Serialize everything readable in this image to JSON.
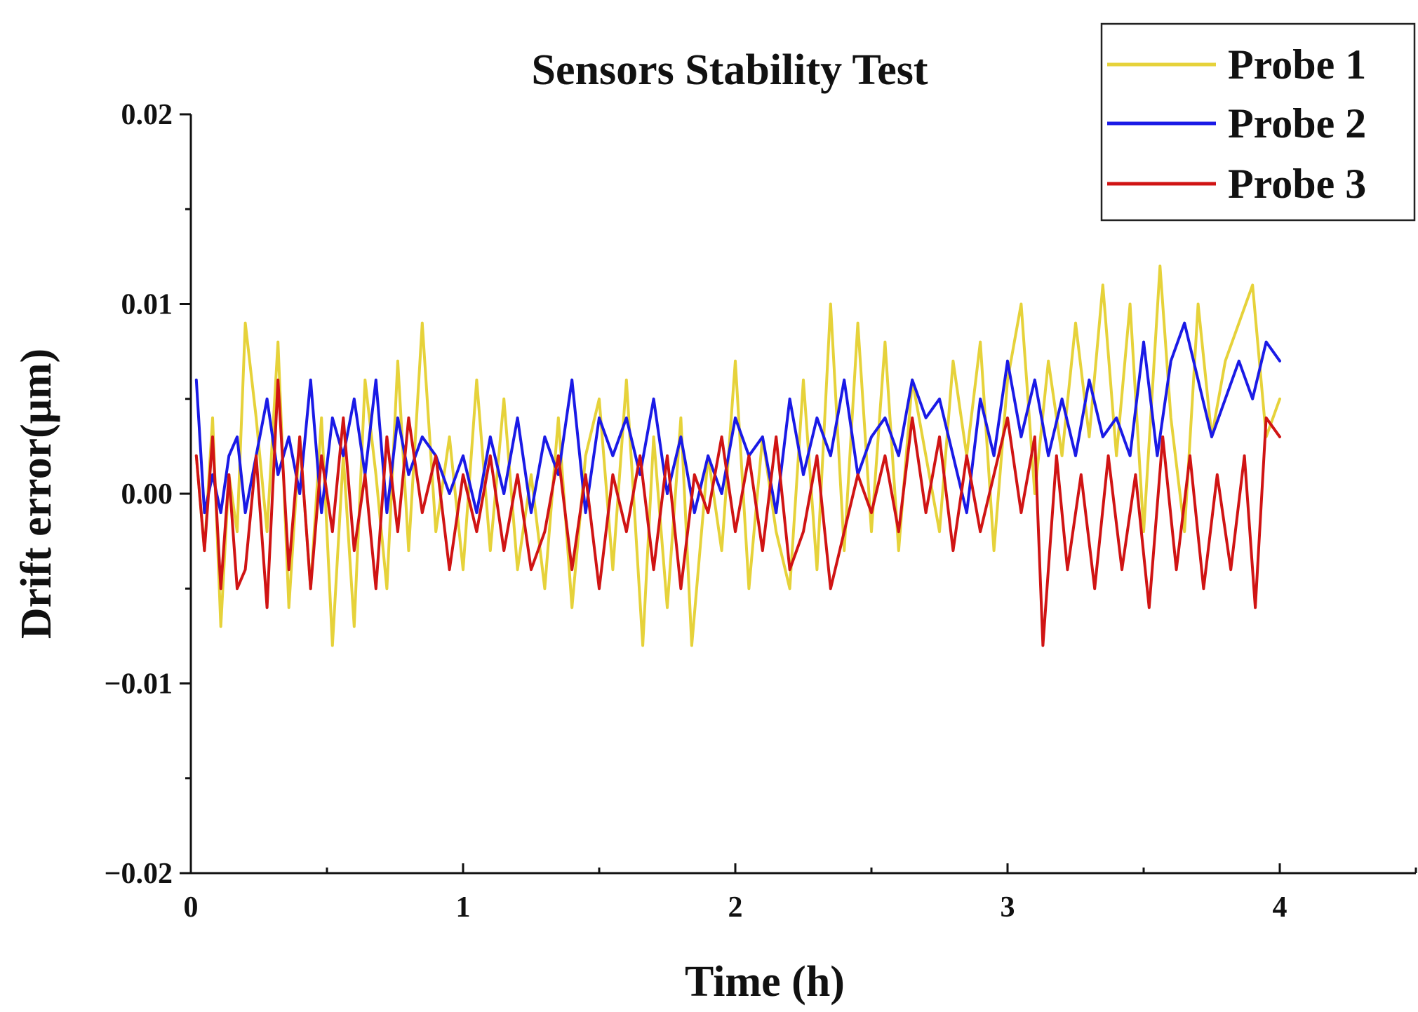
{
  "chart_data": {
    "type": "line",
    "title": "Sensors Stability Test",
    "xlabel": "Time (h)",
    "ylabel": "Drift error(μm)",
    "xlim": [
      0,
      4.5
    ],
    "ylim": [
      -0.02,
      0.02
    ],
    "x_ticks": [
      0,
      1,
      2,
      3,
      4
    ],
    "x_tick_labels": [
      "0",
      "1",
      "2",
      "3",
      "4"
    ],
    "x_minor_ticks": [
      0.5,
      1.5,
      2.5,
      3.5,
      4.5
    ],
    "y_ticks": [
      -0.02,
      -0.01,
      0.0,
      0.01,
      0.02
    ],
    "y_tick_labels": [
      "−0.02",
      "−0.01",
      "0.00",
      "0.01",
      "0.02"
    ],
    "y_minor_ticks": [
      -0.015,
      -0.005,
      0.005,
      0.015
    ],
    "grid": false,
    "legend": "top-right",
    "series": [
      {
        "name": "Probe 1",
        "color": "#e6d23a",
        "x": [
          0.02,
          0.05,
          0.08,
          0.11,
          0.14,
          0.17,
          0.2,
          0.24,
          0.28,
          0.32,
          0.36,
          0.4,
          0.44,
          0.48,
          0.52,
          0.56,
          0.6,
          0.64,
          0.68,
          0.72,
          0.76,
          0.8,
          0.85,
          0.9,
          0.95,
          1.0,
          1.05,
          1.1,
          1.15,
          1.2,
          1.25,
          1.3,
          1.35,
          1.4,
          1.45,
          1.5,
          1.55,
          1.6,
          1.66,
          1.7,
          1.75,
          1.8,
          1.84,
          1.9,
          1.95,
          2.0,
          2.05,
          2.1,
          2.15,
          2.2,
          2.25,
          2.3,
          2.35,
          2.4,
          2.45,
          2.5,
          2.55,
          2.6,
          2.65,
          2.7,
          2.75,
          2.8,
          2.85,
          2.9,
          2.95,
          3.0,
          3.05,
          3.1,
          3.15,
          3.2,
          3.25,
          3.3,
          3.35,
          3.4,
          3.45,
          3.5,
          3.56,
          3.6,
          3.65,
          3.7,
          3.75,
          3.8,
          3.85,
          3.9,
          3.95,
          4.0
        ],
        "y": [
          0.002,
          -0.003,
          0.004,
          -0.007,
          0.001,
          -0.002,
          0.009,
          0.004,
          -0.002,
          0.008,
          -0.006,
          0.003,
          -0.005,
          0.004,
          -0.008,
          0.002,
          -0.007,
          0.006,
          0.001,
          -0.005,
          0.007,
          -0.003,
          0.009,
          -0.002,
          0.003,
          -0.004,
          0.006,
          -0.003,
          0.005,
          -0.004,
          0.001,
          -0.005,
          0.004,
          -0.006,
          0.002,
          0.005,
          -0.004,
          0.006,
          -0.008,
          0.003,
          -0.006,
          0.004,
          -0.008,
          0.002,
          -0.003,
          0.007,
          -0.005,
          0.003,
          -0.002,
          -0.005,
          0.006,
          -0.004,
          0.01,
          -0.003,
          0.009,
          -0.002,
          0.008,
          -0.003,
          0.006,
          0.002,
          -0.002,
          0.007,
          0.002,
          0.008,
          -0.003,
          0.006,
          0.01,
          0.0,
          0.007,
          0.002,
          0.009,
          0.003,
          0.011,
          0.002,
          0.01,
          -0.002,
          0.012,
          0.004,
          -0.002,
          0.01,
          0.003,
          0.007,
          0.009,
          0.011,
          0.003,
          0.005
        ]
      },
      {
        "name": "Probe 2",
        "color": "#1a1ae6",
        "x": [
          0.02,
          0.05,
          0.08,
          0.11,
          0.14,
          0.17,
          0.2,
          0.24,
          0.28,
          0.32,
          0.36,
          0.4,
          0.44,
          0.48,
          0.52,
          0.56,
          0.6,
          0.64,
          0.68,
          0.72,
          0.76,
          0.8,
          0.85,
          0.9,
          0.95,
          1.0,
          1.05,
          1.1,
          1.15,
          1.2,
          1.25,
          1.3,
          1.35,
          1.4,
          1.45,
          1.5,
          1.55,
          1.6,
          1.65,
          1.7,
          1.75,
          1.8,
          1.85,
          1.9,
          1.95,
          2.0,
          2.05,
          2.1,
          2.15,
          2.2,
          2.25,
          2.3,
          2.35,
          2.4,
          2.45,
          2.5,
          2.55,
          2.6,
          2.65,
          2.7,
          2.75,
          2.8,
          2.85,
          2.9,
          2.95,
          3.0,
          3.05,
          3.1,
          3.15,
          3.2,
          3.25,
          3.3,
          3.35,
          3.4,
          3.45,
          3.5,
          3.55,
          3.6,
          3.65,
          3.7,
          3.75,
          3.8,
          3.85,
          3.9,
          3.95,
          4.0
        ],
        "y": [
          0.006,
          -0.001,
          0.001,
          -0.001,
          0.002,
          0.003,
          -0.001,
          0.002,
          0.005,
          0.001,
          0.003,
          0.0,
          0.006,
          -0.001,
          0.004,
          0.002,
          0.005,
          0.001,
          0.006,
          -0.001,
          0.004,
          0.001,
          0.003,
          0.002,
          0.0,
          0.002,
          -0.001,
          0.003,
          0.0,
          0.004,
          -0.001,
          0.003,
          0.001,
          0.006,
          -0.001,
          0.004,
          0.002,
          0.004,
          0.001,
          0.005,
          0.0,
          0.003,
          -0.001,
          0.002,
          0.0,
          0.004,
          0.002,
          0.003,
          -0.001,
          0.005,
          0.001,
          0.004,
          0.002,
          0.006,
          0.001,
          0.003,
          0.004,
          0.002,
          0.006,
          0.004,
          0.005,
          0.002,
          -0.001,
          0.005,
          0.002,
          0.007,
          0.003,
          0.006,
          0.002,
          0.005,
          0.002,
          0.006,
          0.003,
          0.004,
          0.002,
          0.008,
          0.002,
          0.007,
          0.009,
          0.006,
          0.003,
          0.005,
          0.007,
          0.005,
          0.008,
          0.007
        ]
      },
      {
        "name": "Probe 3",
        "color": "#d01414",
        "x": [
          0.02,
          0.05,
          0.08,
          0.11,
          0.14,
          0.17,
          0.2,
          0.24,
          0.28,
          0.32,
          0.36,
          0.4,
          0.44,
          0.48,
          0.52,
          0.56,
          0.6,
          0.64,
          0.68,
          0.72,
          0.76,
          0.8,
          0.85,
          0.9,
          0.95,
          1.0,
          1.05,
          1.1,
          1.15,
          1.2,
          1.25,
          1.3,
          1.35,
          1.4,
          1.45,
          1.5,
          1.55,
          1.6,
          1.65,
          1.7,
          1.75,
          1.8,
          1.85,
          1.9,
          1.95,
          2.0,
          2.05,
          2.1,
          2.15,
          2.2,
          2.25,
          2.3,
          2.35,
          2.4,
          2.45,
          2.5,
          2.55,
          2.6,
          2.65,
          2.7,
          2.75,
          2.8,
          2.85,
          2.9,
          2.95,
          3.0,
          3.05,
          3.1,
          3.13,
          3.18,
          3.22,
          3.27,
          3.32,
          3.37,
          3.42,
          3.47,
          3.52,
          3.57,
          3.62,
          3.67,
          3.72,
          3.77,
          3.82,
          3.87,
          3.91,
          3.95,
          4.0
        ],
        "y": [
          0.002,
          -0.003,
          0.003,
          -0.005,
          0.001,
          -0.005,
          -0.004,
          0.002,
          -0.006,
          0.006,
          -0.004,
          0.003,
          -0.005,
          0.002,
          -0.002,
          0.004,
          -0.003,
          0.001,
          -0.005,
          0.003,
          -0.002,
          0.004,
          -0.001,
          0.002,
          -0.004,
          0.001,
          -0.002,
          0.002,
          -0.003,
          0.001,
          -0.004,
          -0.002,
          0.002,
          -0.004,
          0.001,
          -0.005,
          0.001,
          -0.002,
          0.002,
          -0.004,
          0.002,
          -0.005,
          0.001,
          -0.001,
          0.003,
          -0.002,
          0.002,
          -0.003,
          0.003,
          -0.004,
          -0.002,
          0.002,
          -0.005,
          -0.002,
          0.001,
          -0.001,
          0.002,
          -0.002,
          0.004,
          -0.001,
          0.003,
          -0.003,
          0.002,
          -0.002,
          0.001,
          0.004,
          -0.001,
          0.003,
          -0.008,
          0.002,
          -0.004,
          0.001,
          -0.005,
          0.002,
          -0.004,
          0.001,
          -0.006,
          0.003,
          -0.004,
          0.002,
          -0.005,
          0.001,
          -0.004,
          0.002,
          -0.006,
          0.004,
          0.003
        ]
      }
    ]
  }
}
